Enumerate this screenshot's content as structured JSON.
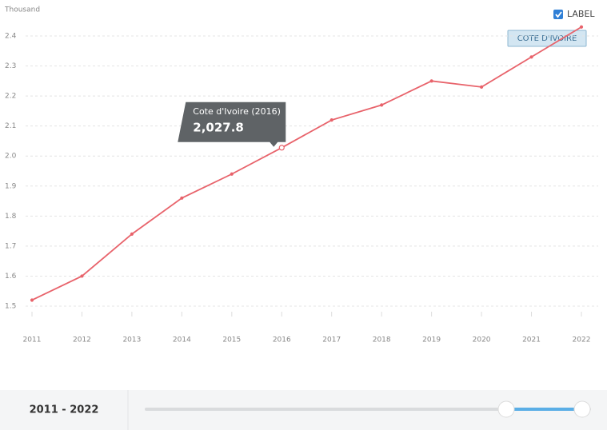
{
  "chart_data": {
    "type": "line",
    "unit_label": "Thousand",
    "categories": [
      "2011",
      "2012",
      "2013",
      "2014",
      "2015",
      "2016",
      "2017",
      "2018",
      "2019",
      "2020",
      "2021",
      "2022"
    ],
    "series": [
      {
        "name": "COTE D'IVOIRE",
        "color": "#e8636b",
        "values": [
          1.52,
          1.6,
          1.74,
          1.86,
          1.94,
          2.0278,
          2.12,
          2.17,
          2.25,
          2.23,
          2.33,
          2.43
        ],
        "value_labels": [
          null,
          null,
          null,
          null,
          null,
          "2,027.8",
          null,
          null,
          null,
          null,
          null,
          null
        ]
      }
    ],
    "tooltip_title": "Cote d'Ivoire (2016)",
    "ylim": [
      1.5,
      2.4
    ],
    "yticks": [
      1.5,
      1.6,
      1.7,
      1.8,
      1.9,
      {
        "value": 2,
        "label": "2.0"
      },
      2.1,
      2.2,
      2.3,
      2.4
    ],
    "grid": true,
    "label_toggle": "LABEL",
    "range_label": "2011 - 2022"
  }
}
